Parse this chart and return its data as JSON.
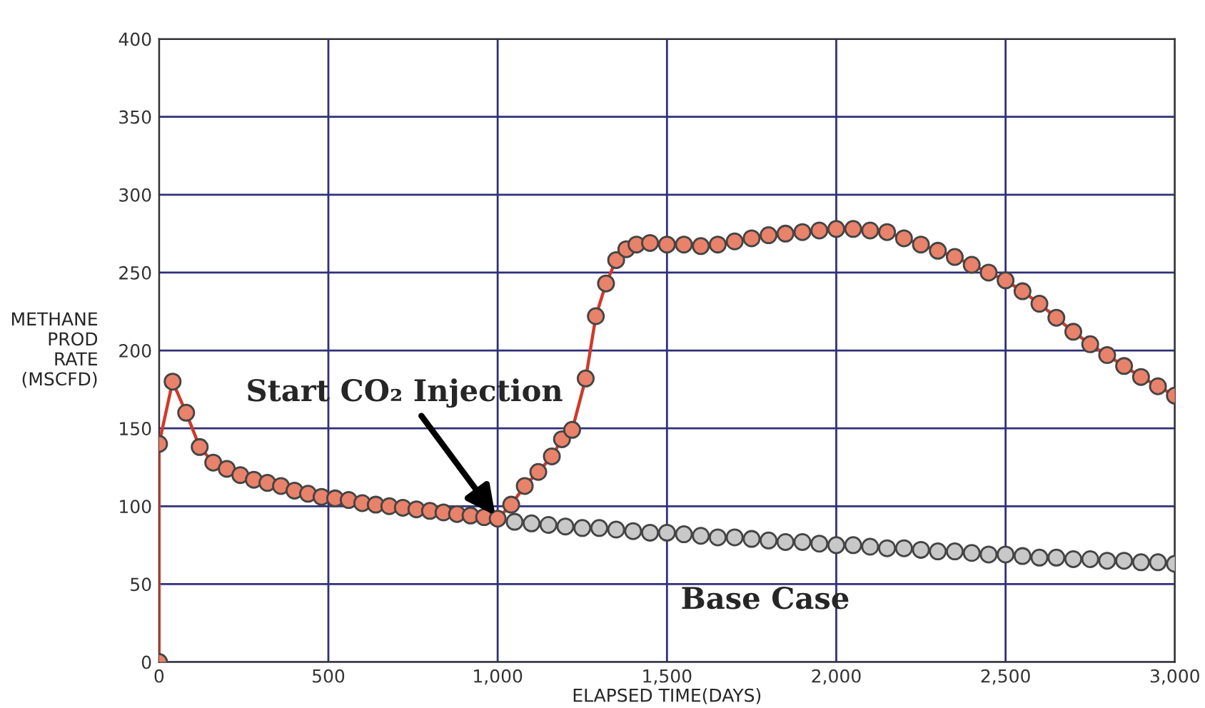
{
  "chart_data": {
    "type": "line",
    "xlabel": "ELAPSED TIME(DAYS)",
    "ylabel": "METHANE\nPROD\nRATE\n(MSCFD)",
    "xlim": [
      0,
      3000
    ],
    "ylim": [
      0,
      400
    ],
    "xticks": [
      0,
      500,
      {
        "value": 1000,
        "label": "1,000"
      },
      {
        "value": 1500,
        "label": "1,500"
      },
      {
        "value": 2000,
        "label": "2,000"
      },
      {
        "value": 2500,
        "label": "2,500"
      },
      {
        "value": 3000,
        "label": "3,000"
      }
    ],
    "yticks": [
      0,
      50,
      100,
      150,
      200,
      250,
      300,
      350,
      400
    ],
    "grid": true,
    "marker": "circle",
    "line_style": "solid",
    "series": [
      {
        "name": "Base Case",
        "type": "scatter",
        "color": "#c8c8c8",
        "x": [
          1050,
          1100,
          1150,
          1200,
          1250,
          1300,
          1350,
          1400,
          1450,
          1500,
          1550,
          1600,
          1650,
          1700,
          1750,
          1800,
          1850,
          1900,
          1950,
          2000,
          2050,
          2100,
          2150,
          2200,
          2250,
          2300,
          2350,
          2400,
          2450,
          2500,
          2550,
          2600,
          2650,
          2700,
          2750,
          2800,
          2850,
          2900,
          2950,
          3000
        ],
        "values": [
          90,
          89,
          88,
          87,
          86,
          86,
          85,
          84,
          83,
          83,
          82,
          81,
          80,
          80,
          79,
          78,
          77,
          77,
          76,
          75,
          75,
          74,
          73,
          73,
          72,
          71,
          71,
          70,
          69,
          69,
          68,
          67,
          67,
          66,
          66,
          65,
          65,
          64,
          64,
          63
        ]
      },
      {
        "color": "#e8826a",
        "x": [
          0,
          0,
          40,
          80,
          120,
          160,
          200,
          240,
          280,
          320,
          360,
          400,
          440,
          480,
          520,
          560,
          600,
          640,
          680,
          720,
          760,
          800,
          840,
          880,
          920,
          960,
          1000,
          1040,
          1080,
          1120,
          1160,
          1190,
          1220,
          1260,
          1290,
          1320,
          1350,
          1380,
          1410,
          1450,
          1500,
          1550,
          1600,
          1650,
          1700,
          1750,
          1800,
          1850,
          1900,
          1950,
          2000,
          2050,
          2100,
          2150,
          2200,
          2250,
          2300,
          2350,
          2400,
          2450,
          2500,
          2550,
          2600,
          2650,
          2700,
          2750,
          2800,
          2850,
          2900,
          2950,
          3000
        ],
        "values": [
          0,
          140,
          180,
          160,
          138,
          128,
          124,
          120,
          117,
          115,
          113,
          110,
          108,
          106,
          105,
          104,
          102,
          101,
          100,
          99,
          98,
          97,
          96,
          95,
          94,
          93,
          92,
          101,
          113,
          122,
          132,
          143,
          149,
          182,
          222,
          243,
          258,
          265,
          268,
          269,
          268,
          268,
          267,
          268,
          270,
          272,
          274,
          275,
          276,
          277,
          278,
          278,
          277,
          276,
          272,
          268,
          264,
          260,
          255,
          250,
          245,
          238,
          230,
          221,
          212,
          204,
          197,
          190,
          183,
          177,
          171
        ]
      }
    ],
    "annotations": [
      {
        "text": "Start CO₂ Injection",
        "x": 1000,
        "y": 92
      }
    ]
  }
}
